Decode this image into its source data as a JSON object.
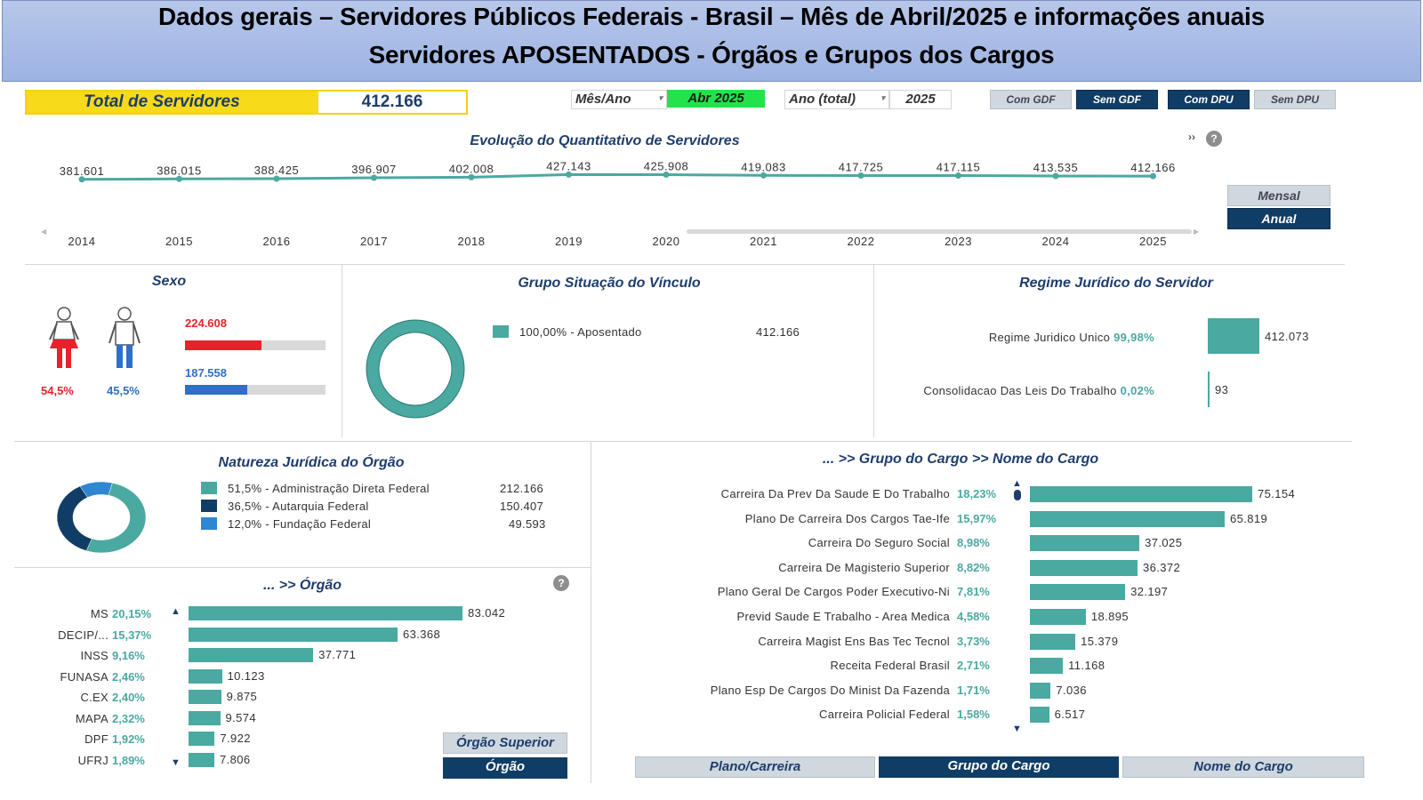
{
  "header": {
    "line1": "Dados gerais – Servidores Públicos Federais - Brasil – Mês de Abril/2025 e informações anuais",
    "line2": "Servidores APOSENTADOS - Órgãos e Grupos dos Cargos"
  },
  "total": {
    "label": "Total de Servidores",
    "value": "412.166"
  },
  "filters": {
    "month_label": "Mês/Ano",
    "month_value": "Abr 2025",
    "year_label": "Ano (total)",
    "year_value": "2025",
    "buttons": [
      "Com GDF",
      "Sem GDF",
      "Com DPU",
      "Sem DPU"
    ]
  },
  "evolution": {
    "title": "Evolução do Quantitativo de Servidores",
    "more_icon": "double-chevron-right",
    "help_icon": "question-circle",
    "toggle": {
      "monthly": "Mensal",
      "annual": "Anual"
    }
  },
  "chart_data": {
    "type": "line",
    "x": [
      "2014",
      "2015",
      "2016",
      "2017",
      "2018",
      "2019",
      "2020",
      "2021",
      "2022",
      "2023",
      "2024",
      "2025"
    ],
    "values": [
      381601,
      386015,
      388425,
      396907,
      402008,
      427143,
      425908,
      419083,
      417725,
      417115,
      413535,
      412166
    ],
    "value_labels": [
      "381.601",
      "386.015",
      "388.425",
      "396.907",
      "402.008",
      "427.143",
      "425.908",
      "419.083",
      "417.725",
      "417.115",
      "413.535",
      "412.166"
    ],
    "ylim": [
      0,
      430000
    ],
    "grid": false,
    "color": "#4aa9a1"
  },
  "sexo": {
    "title": "Sexo",
    "female": {
      "value": "224.608",
      "pct": "54,5%",
      "fraction": 0.545,
      "color": "#e8212a"
    },
    "male": {
      "value": "187.558",
      "pct": "45,5%",
      "fraction": 0.455,
      "color": "#2f6fc5"
    }
  },
  "vinculo": {
    "title": "Grupo Situação do Vínculo",
    "items": [
      {
        "label": "100,00% - Aposentado",
        "value": "412.166",
        "fraction": 1.0,
        "color": "#4aa9a1"
      }
    ]
  },
  "regime": {
    "title": "Regime Jurídico do Servidor",
    "items": [
      {
        "label": "Regime Juridico Unico",
        "pct": "99,98%",
        "value": "412.073",
        "fraction": 0.9998
      },
      {
        "label": "Consolidacao Das Leis Do Trabalho",
        "pct": "0,02%",
        "value": "93",
        "fraction": 0.0002
      }
    ]
  },
  "natureza": {
    "title": "Natureza Jurídica do Órgão",
    "items": [
      {
        "label": "51,5% - Administração Direta Federal",
        "value": "212.166",
        "fraction": 0.515,
        "color": "#4aa9a1"
      },
      {
        "label": "36,5% - Autarquia Federal",
        "value": "150.407",
        "fraction": 0.365,
        "color": "#103d66"
      },
      {
        "label": "12,0% - Fundação Federal",
        "value": "49.593",
        "fraction": 0.12,
        "color": "#2f86d1"
      }
    ]
  },
  "orgao": {
    "title": "... >> Órgão",
    "help_icon": "question-circle",
    "max": 83042,
    "items": [
      {
        "name": "MS",
        "pct": "20,15%",
        "value": "83.042",
        "num": 83042
      },
      {
        "name": "DECIP/...",
        "pct": "15,37%",
        "value": "63.368",
        "num": 63368
      },
      {
        "name": "INSS",
        "pct": "9,16%",
        "value": "37.771",
        "num": 37771
      },
      {
        "name": "FUNASA",
        "pct": "2,46%",
        "value": "10.123",
        "num": 10123
      },
      {
        "name": "C.EX",
        "pct": "2,40%",
        "value": "9.875",
        "num": 9875
      },
      {
        "name": "MAPA",
        "pct": "2,32%",
        "value": "9.574",
        "num": 9574
      },
      {
        "name": "DPF",
        "pct": "1,92%",
        "value": "7.922",
        "num": 7922
      },
      {
        "name": "UFRJ",
        "pct": "1,89%",
        "value": "7.806",
        "num": 7806
      }
    ],
    "buttons": {
      "superior": "Órgão Superior",
      "orgao": "Órgão"
    }
  },
  "cargo": {
    "title": "... >> Grupo do Cargo >> Nome do Cargo",
    "max": 75154,
    "items": [
      {
        "name": "Carreira Da Prev Da Saude E Do Trabalho",
        "pct": "18,23%",
        "value": "75.154",
        "num": 75154
      },
      {
        "name": "Plano De Carreira Dos Cargos Tae-Ife",
        "pct": "15,97%",
        "value": "65.819",
        "num": 65819
      },
      {
        "name": "Carreira Do Seguro Social",
        "pct": "8,98%",
        "value": "37.025",
        "num": 37025
      },
      {
        "name": "Carreira De Magisterio Superior",
        "pct": "8,82%",
        "value": "36.372",
        "num": 36372
      },
      {
        "name": "Plano Geral De Cargos Poder Executivo-Ni",
        "pct": "7,81%",
        "value": "32.197",
        "num": 32197
      },
      {
        "name": "Previd Saude E Trabalho - Area Medica",
        "pct": "4,58%",
        "value": "18.895",
        "num": 18895
      },
      {
        "name": "Carreira Magist Ens Bas Tec Tecnol",
        "pct": "3,73%",
        "value": "15.379",
        "num": 15379
      },
      {
        "name": "Receita Federal Brasil",
        "pct": "2,71%",
        "value": "11.168",
        "num": 11168
      },
      {
        "name": "Plano Esp De Cargos Do Minist Da Fazenda",
        "pct": "1,71%",
        "value": "7.036",
        "num": 7036
      },
      {
        "name": "Carreira Policial Federal",
        "pct": "1,58%",
        "value": "6.517",
        "num": 6517
      }
    ],
    "buttons": {
      "plano": "Plano/Carreira",
      "grupo": "Grupo do Cargo",
      "nome": "Nome do Cargo"
    }
  }
}
